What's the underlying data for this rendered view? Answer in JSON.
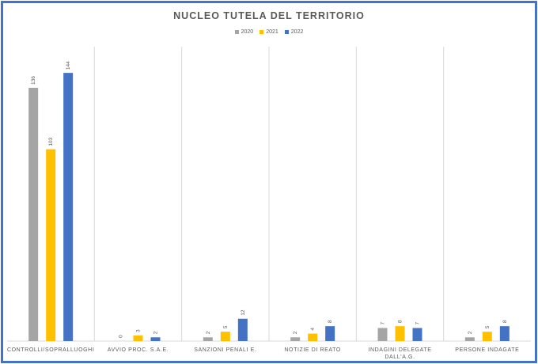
{
  "chart_data": {
    "type": "bar",
    "title": "NUCLEO TUTELA DEL TERRITORIO",
    "xlabel": "",
    "ylabel": "",
    "grid": false,
    "legend_position": "top",
    "categories": [
      [
        "CONTROLLI/SOPRALLUOGHI"
      ],
      [
        "AVVIO PROC. S.A.E."
      ],
      [
        "SANZIONI PENALI E."
      ],
      [
        "NOTIZIE DI REATO"
      ],
      [
        "INDAGINI DELEGATE",
        "DALL'A.G."
      ],
      [
        "PERSONE INDAGATE"
      ]
    ],
    "series": [
      {
        "name": "2020",
        "color": "#A5A5A5",
        "values": [
          136,
          0,
          2,
          2,
          7,
          2
        ]
      },
      {
        "name": "2021",
        "color": "#FFC000",
        "values": [
          103,
          3,
          5,
          4,
          8,
          5
        ]
      },
      {
        "name": "2022",
        "color": "#4472C4",
        "values": [
          144,
          2,
          12,
          8,
          7,
          8
        ]
      }
    ],
    "ylim": [
      0,
      150
    ]
  }
}
